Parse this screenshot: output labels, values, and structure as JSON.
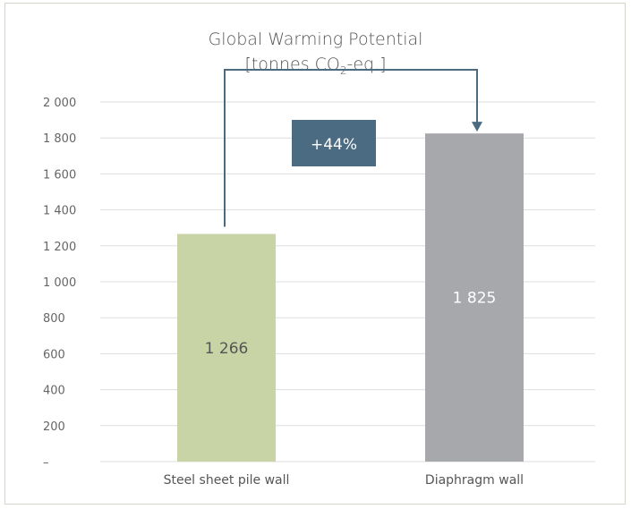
{
  "chart_data": {
    "type": "bar",
    "title_line1": "Global Warming Potential",
    "title_line2_pre": "[tonnes CO",
    "title_line2_sub": "2",
    "title_line2_post": "-eq.]",
    "categories": [
      "Steel sheet pile wall",
      "Diaphragm wall"
    ],
    "values": [
      1266,
      1825
    ],
    "value_labels": [
      "1 266",
      "1 825"
    ],
    "bar_colors": [
      "#c9d4a6",
      "#a7a8ab"
    ],
    "label_colors": [
      "#555555",
      "#ffffff"
    ],
    "ylim": [
      0,
      2000
    ],
    "yticks": [
      {
        "value": 0,
        "label": "–"
      },
      {
        "value": 200,
        "label": "200"
      },
      {
        "value": 400,
        "label": "400"
      },
      {
        "value": 600,
        "label": "600"
      },
      {
        "value": 800,
        "label": "800"
      },
      {
        "value": 1000,
        "label": "1 000"
      },
      {
        "value": 1200,
        "label": "1 200"
      },
      {
        "value": 1400,
        "label": "1 400"
      },
      {
        "value": 1600,
        "label": "1 600"
      },
      {
        "value": 1800,
        "label": "1 800"
      },
      {
        "value": 2000,
        "label": "2 000"
      }
    ],
    "grid": true,
    "annotation": {
      "text": "+44%",
      "box_color": "#4a6b82",
      "arrow_color": "#4a6b82",
      "from_value": 1266,
      "to_value": 1825
    }
  }
}
